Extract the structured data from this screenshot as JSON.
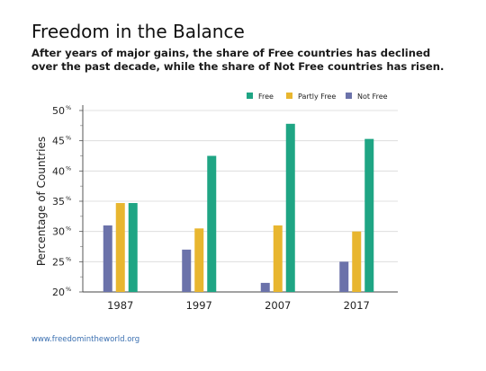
{
  "header": {
    "title": "Freedom in the Balance",
    "subtitle": "After years of major gains, the share of Free countries has declined over the past decade, while the share of Not Free countries has risen."
  },
  "footer": {
    "source": "www.freedomintheworld.org"
  },
  "colors": {
    "free": "#1fa584",
    "partly_free": "#e8b62f",
    "not_free": "#6b72aa"
  },
  "chart_data": {
    "type": "bar",
    "title": "Freedom in the Balance",
    "ylabel": "Percentage of Countries",
    "xlabel": "",
    "categories": [
      "1987",
      "1997",
      "2007",
      "2017"
    ],
    "ylim": [
      20,
      50
    ],
    "yticks": [
      20,
      25,
      30,
      35,
      40,
      45,
      50
    ],
    "ytick_suffix": "%",
    "grid": true,
    "legend_position": "top-right",
    "series": [
      {
        "name": "Not Free",
        "values": [
          31,
          27,
          21.5,
          25
        ]
      },
      {
        "name": "Partly Free",
        "values": [
          34.7,
          30.5,
          31,
          30
        ]
      },
      {
        "name": "Free",
        "values": [
          34.7,
          42.5,
          47.8,
          45.3
        ]
      }
    ]
  }
}
